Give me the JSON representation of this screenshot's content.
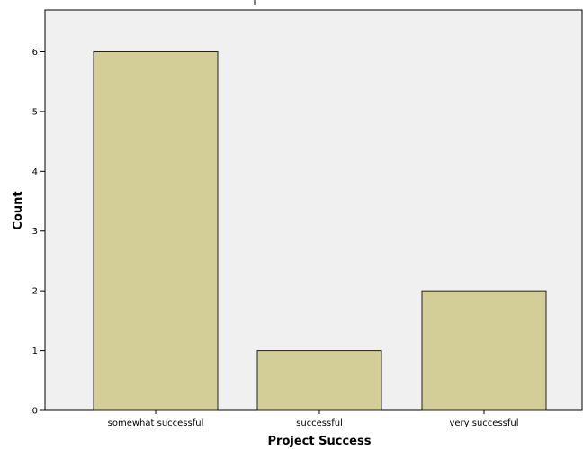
{
  "chart_data": {
    "type": "bar",
    "categories": [
      "somewhat successful",
      "successful",
      "very successful"
    ],
    "values": [
      6,
      1,
      2
    ],
    "title": "",
    "xlabel": "Project Success",
    "ylabel": "Count",
    "ylim": [
      0,
      6.7
    ],
    "yticks": [
      0,
      1,
      2,
      3,
      4,
      5,
      6
    ],
    "grid": false,
    "legend": "none",
    "colors": {
      "bar_fill": "#d3ce97",
      "bar_stroke": "#222222",
      "plot_background": "#f0f0f0",
      "axis": "#000000"
    }
  }
}
